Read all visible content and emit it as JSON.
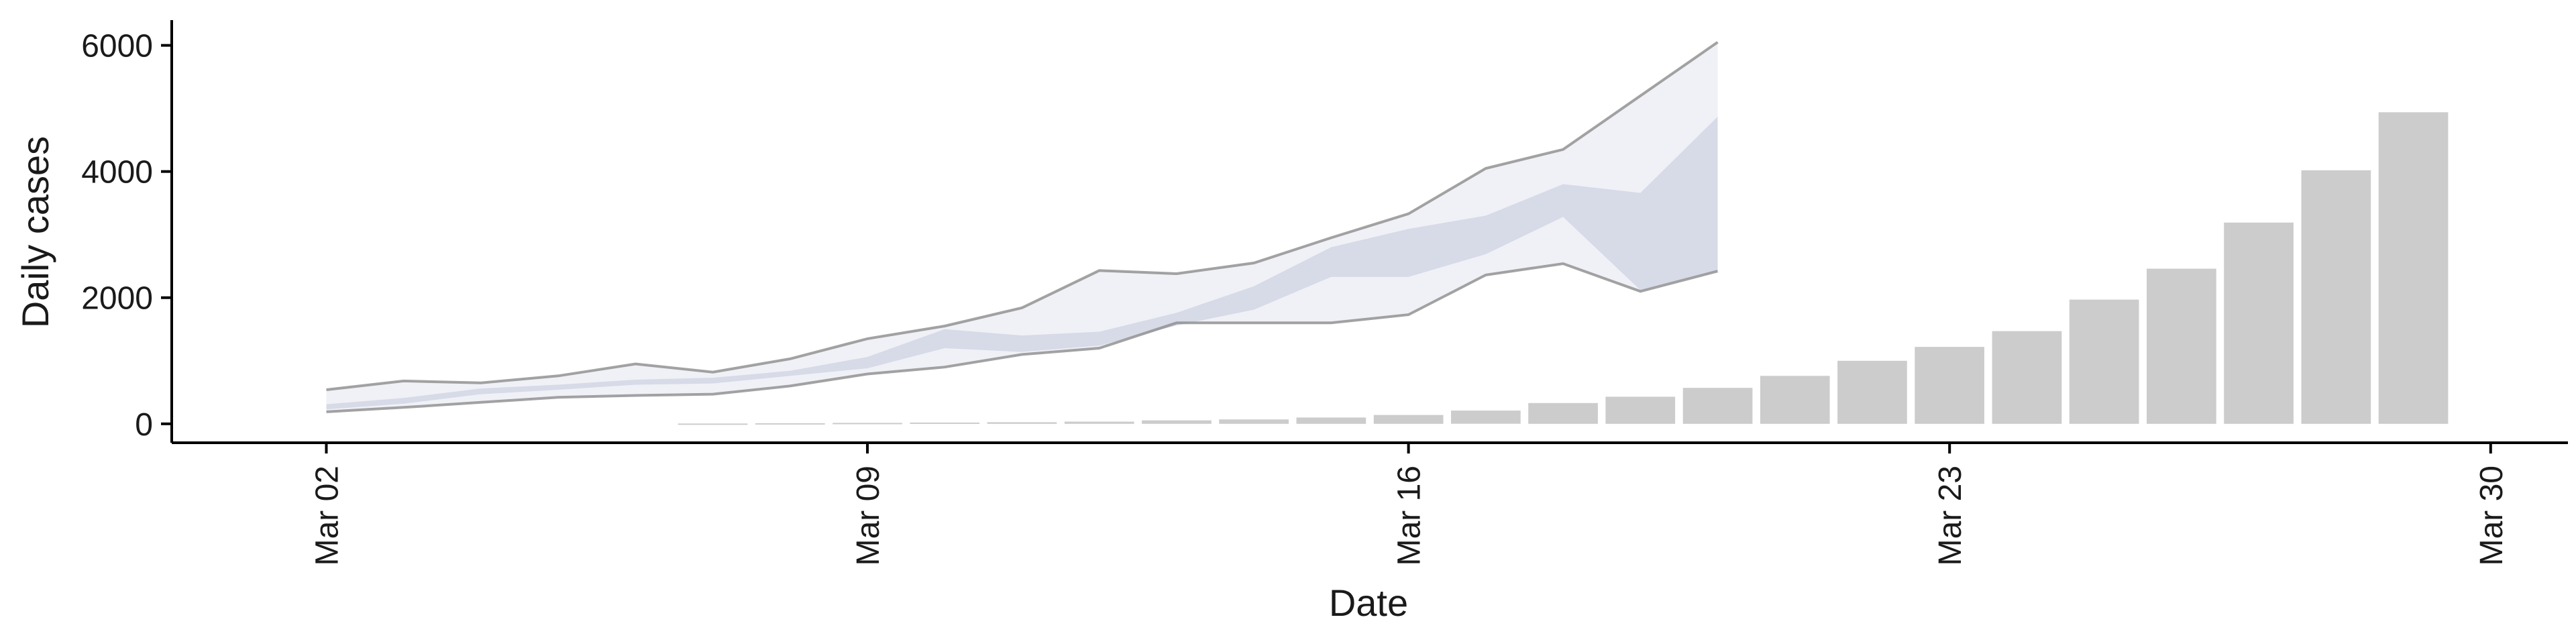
{
  "chart_data": {
    "type": "bar",
    "xlabel": "Date",
    "ylabel": "Daily cases",
    "ylim": [
      -300,
      6400
    ],
    "y_ticks": [
      0,
      2000,
      4000,
      6000
    ],
    "y_tick_labels": [
      "0",
      "2000",
      "4000",
      "6000"
    ],
    "x_ticks": [
      "2020-03-02",
      "2020-03-09",
      "2020-03-16",
      "2020-03-23",
      "2020-03-30"
    ],
    "x_tick_labels": [
      "Mar 02",
      "Mar 09",
      "Mar 16",
      "Mar 23",
      "Mar 30"
    ],
    "xlim": [
      "2020-02-29",
      "2020-03-31"
    ],
    "grid": false,
    "colors": {
      "bars": "#cccccc",
      "inner_band": "#d4d7e6",
      "outer_band": "#eceef5",
      "band_edge": "#8c8c8c"
    },
    "bars": {
      "dates": [
        "2020-03-07",
        "2020-03-08",
        "2020-03-09",
        "2020-03-10",
        "2020-03-11",
        "2020-03-12",
        "2020-03-13",
        "2020-03-14",
        "2020-03-15",
        "2020-03-16",
        "2020-03-17",
        "2020-03-18",
        "2020-03-19",
        "2020-03-20",
        "2020-03-21",
        "2020-03-22",
        "2020-03-23",
        "2020-03-24",
        "2020-03-25",
        "2020-03-26",
        "2020-03-27",
        "2020-03-28",
        "2020-03-29"
      ],
      "values": [
        5,
        10,
        15,
        20,
        25,
        35,
        55,
        70,
        100,
        140,
        210,
        330,
        430,
        570,
        760,
        1000,
        1220,
        1470,
        1970,
        2460,
        3190,
        4020,
        4940
      ]
    },
    "projection": {
      "dates": [
        "2020-03-02",
        "2020-03-03",
        "2020-03-04",
        "2020-03-05",
        "2020-03-06",
        "2020-03-07",
        "2020-03-08",
        "2020-03-09",
        "2020-03-10",
        "2020-03-11",
        "2020-03-12",
        "2020-03-13",
        "2020-03-14",
        "2020-03-15",
        "2020-03-16",
        "2020-03-17",
        "2020-03-18",
        "2020-03-19",
        "2020-03-20"
      ],
      "outer_upper": [
        540,
        680,
        650,
        760,
        950,
        820,
        1030,
        1350,
        1550,
        1840,
        2430,
        2380,
        2550,
        2950,
        3330,
        4050,
        4350,
        5200,
        6050
      ],
      "outer_lower": [
        190,
        260,
        340,
        420,
        450,
        470,
        600,
        790,
        900,
        1100,
        1200,
        1600,
        1600,
        1600,
        1730,
        2360,
        2540,
        2100,
        2420
      ],
      "inner_upper": [
        310,
        410,
        560,
        620,
        700,
        730,
        840,
        1060,
        1500,
        1400,
        1460,
        1760,
        2180,
        2800,
        3090,
        3300,
        3800,
        3660,
        4870
      ],
      "inner_lower": [
        230,
        320,
        470,
        540,
        620,
        640,
        760,
        880,
        1200,
        1140,
        1240,
        1560,
        1810,
        2330,
        2330,
        2690,
        3280,
        2120,
        2430
      ]
    }
  }
}
